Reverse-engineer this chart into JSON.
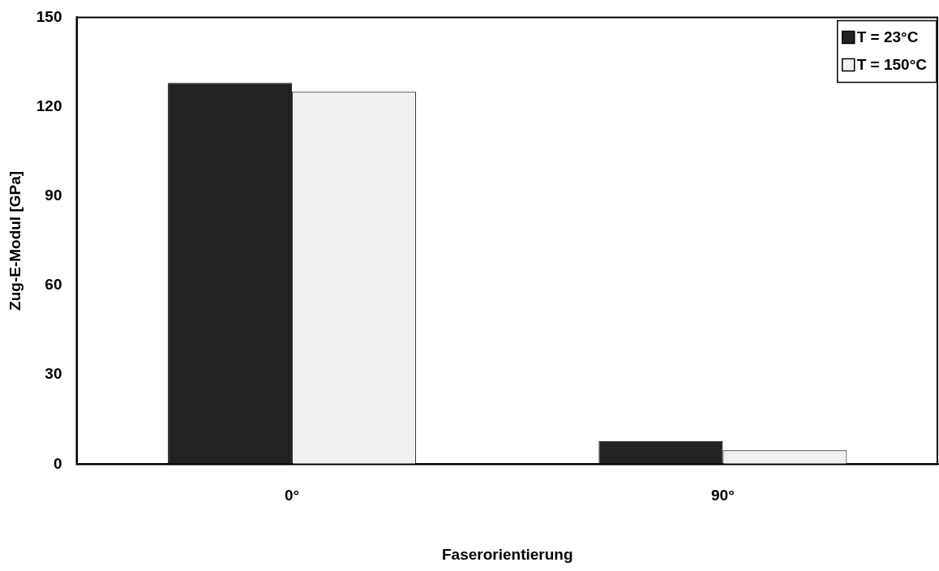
{
  "chart_data": {
    "type": "bar",
    "xlabel": "Faserorientierung",
    "ylabel": "Zug-E-Modul [GPa]",
    "categories": [
      "0°",
      "90°"
    ],
    "series": [
      {
        "name": "T = 23°C",
        "color": "#222222",
        "values": [
          128,
          7.8
        ]
      },
      {
        "name": "T = 150°C",
        "color": "#f0f0f0",
        "values": [
          125,
          4.7
        ]
      }
    ],
    "ylim": [
      0,
      150
    ],
    "yticks": [
      0,
      30,
      60,
      90,
      120,
      150
    ],
    "grid": false,
    "legend": "top right"
  }
}
